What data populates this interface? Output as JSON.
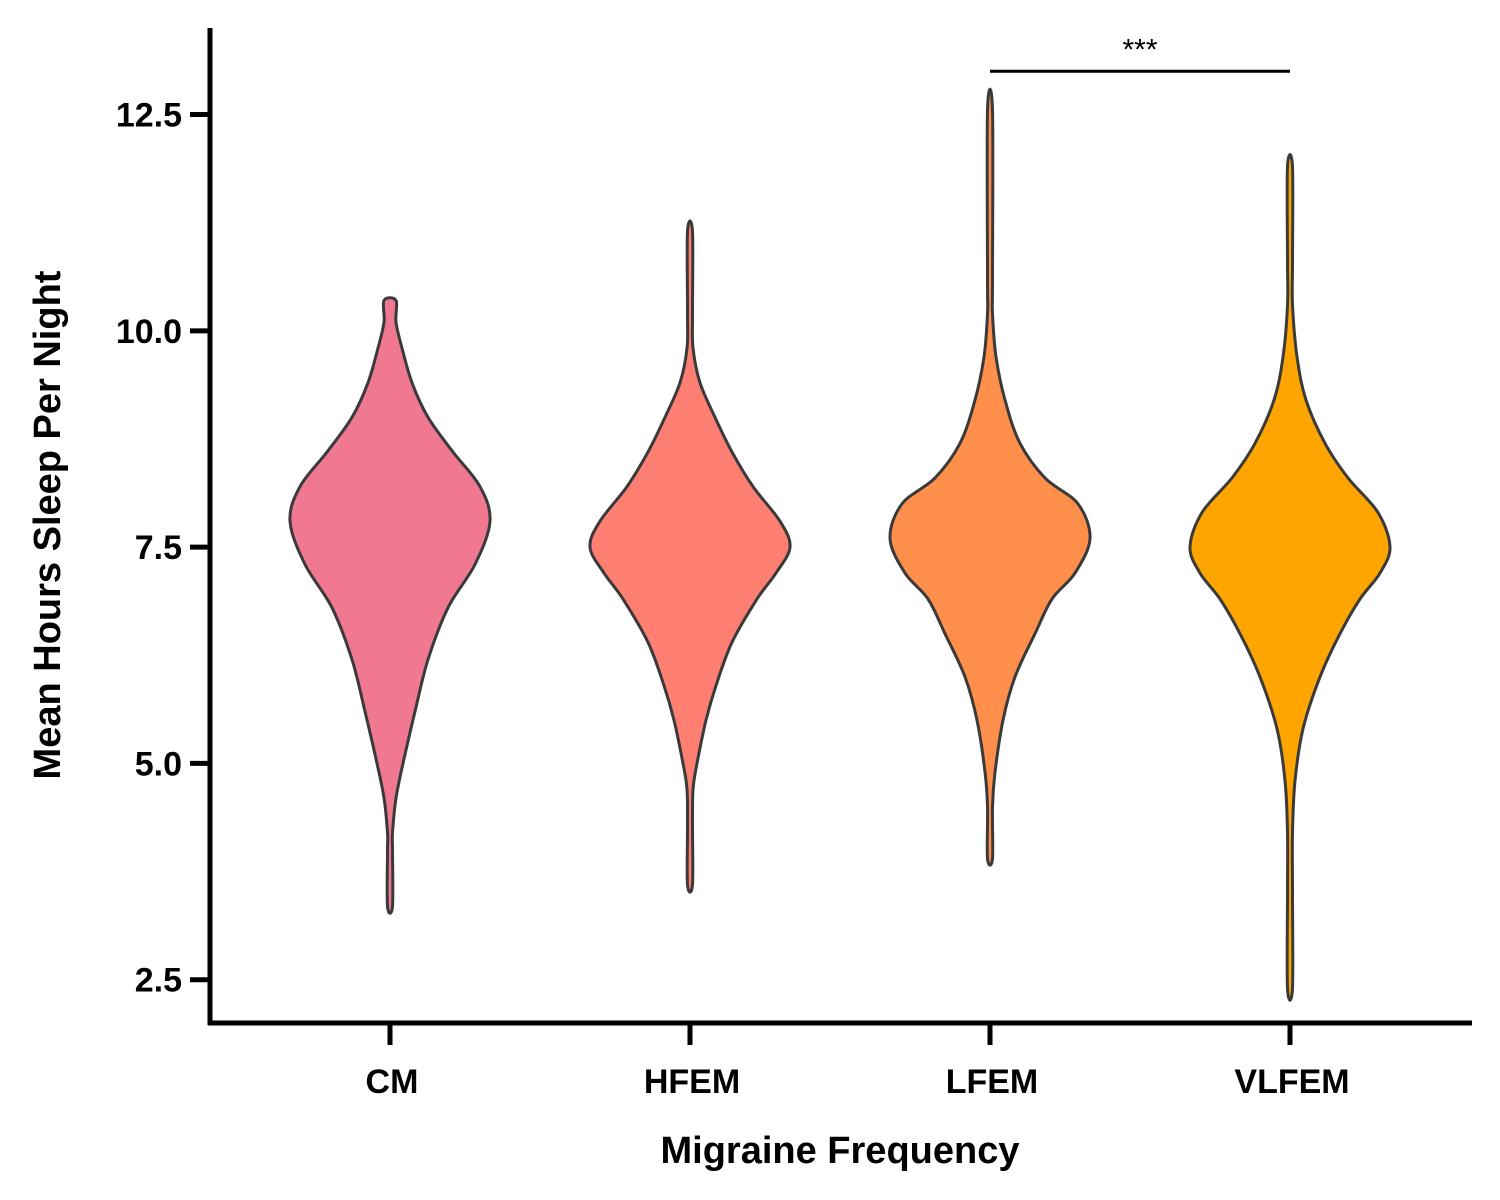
{
  "chart_data": {
    "type": "violin",
    "xlabel": "Migraine Frequency",
    "ylabel": "Mean Hours Sleep Per Night",
    "ylim": [
      2.0,
      13.5
    ],
    "yticks": [
      "2.5",
      "5.0",
      "7.5",
      "10.0",
      "12.5"
    ],
    "categories": [
      "CM",
      "HFEM",
      "LFEM",
      "VLFEM"
    ],
    "colors": [
      "#F07891",
      "#FF7F73",
      "#FF8F4A",
      "#FFA500"
    ],
    "outline_color": "#3a3a3a",
    "grid": false,
    "series": [
      {
        "category": "CM",
        "min": 3.35,
        "max": 10.35,
        "density_profile": [
          [
            3.35,
            0.01
          ],
          [
            4.0,
            0.01
          ],
          [
            4.2,
            0.02
          ],
          [
            4.6,
            0.06
          ],
          [
            5.0,
            0.13
          ],
          [
            5.6,
            0.25
          ],
          [
            6.2,
            0.38
          ],
          [
            6.8,
            0.58
          ],
          [
            7.3,
            0.85
          ],
          [
            7.8,
            1.0
          ],
          [
            8.2,
            0.9
          ],
          [
            8.6,
            0.63
          ],
          [
            9.0,
            0.38
          ],
          [
            9.4,
            0.22
          ],
          [
            9.8,
            0.12
          ],
          [
            10.1,
            0.06
          ],
          [
            10.35,
            0.06
          ]
        ]
      },
      {
        "category": "HFEM",
        "min": 3.6,
        "max": 11.15,
        "density_profile": [
          [
            3.6,
            0.01
          ],
          [
            4.3,
            0.02
          ],
          [
            4.7,
            0.03
          ],
          [
            5.0,
            0.07
          ],
          [
            5.5,
            0.16
          ],
          [
            5.9,
            0.26
          ],
          [
            6.4,
            0.42
          ],
          [
            6.9,
            0.67
          ],
          [
            7.2,
            0.86
          ],
          [
            7.5,
            1.0
          ],
          [
            7.8,
            0.9
          ],
          [
            8.2,
            0.63
          ],
          [
            8.6,
            0.42
          ],
          [
            9.0,
            0.25
          ],
          [
            9.4,
            0.1
          ],
          [
            9.8,
            0.03
          ],
          [
            10.2,
            0.015
          ],
          [
            11.15,
            0.01
          ]
        ]
      },
      {
        "category": "LFEM",
        "min": 3.9,
        "max": 12.55,
        "density_profile": [
          [
            3.9,
            0.01
          ],
          [
            4.5,
            0.02
          ],
          [
            4.9,
            0.05
          ],
          [
            5.5,
            0.13
          ],
          [
            6.0,
            0.25
          ],
          [
            6.5,
            0.45
          ],
          [
            6.9,
            0.62
          ],
          [
            7.2,
            0.85
          ],
          [
            7.6,
            1.0
          ],
          [
            8.0,
            0.88
          ],
          [
            8.3,
            0.55
          ],
          [
            8.7,
            0.3
          ],
          [
            9.2,
            0.15
          ],
          [
            9.7,
            0.06
          ],
          [
            10.2,
            0.025
          ],
          [
            10.6,
            0.01
          ],
          [
            12.55,
            0.005
          ]
        ]
      },
      {
        "category": "VLFEM",
        "min": 2.4,
        "max": 11.9,
        "density_profile": [
          [
            2.4,
            0.005
          ],
          [
            3.5,
            0.01
          ],
          [
            4.2,
            0.02
          ],
          [
            4.8,
            0.05
          ],
          [
            5.4,
            0.13
          ],
          [
            6.0,
            0.3
          ],
          [
            6.5,
            0.5
          ],
          [
            6.9,
            0.7
          ],
          [
            7.2,
            0.9
          ],
          [
            7.5,
            1.0
          ],
          [
            7.9,
            0.88
          ],
          [
            8.3,
            0.58
          ],
          [
            8.7,
            0.35
          ],
          [
            9.2,
            0.16
          ],
          [
            9.7,
            0.07
          ],
          [
            10.3,
            0.025
          ],
          [
            10.8,
            0.01
          ],
          [
            11.9,
            0.005
          ]
        ]
      }
    ],
    "annotations": [
      {
        "label": "***",
        "from": "LFEM",
        "to": "VLFEM",
        "y": 13.0
      }
    ]
  }
}
